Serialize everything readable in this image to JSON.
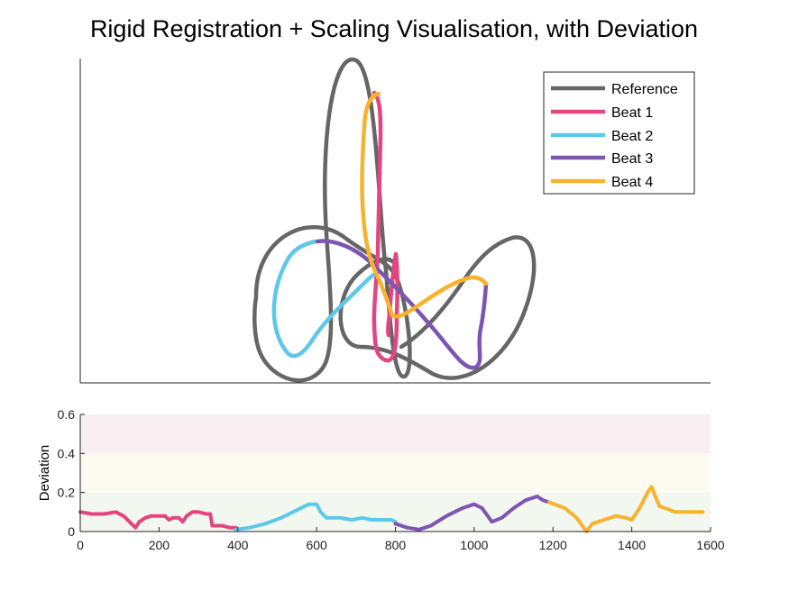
{
  "title": "Rigid Registration + Scaling Visualisation, with Deviation",
  "colors": {
    "reference": "#666666",
    "beat1": "#e5457f",
    "beat2": "#5ec8e8",
    "beat3": "#7e55b3",
    "beat4": "#f8b22e",
    "zone_high": "#f9eef2",
    "zone_mid": "#fdfbf0",
    "zone_low": "#f2f8f0"
  },
  "legend": [
    "Reference",
    "Beat 1",
    "Beat 2",
    "Beat 3",
    "Beat 4"
  ],
  "chart_data": [
    {
      "type": "line",
      "title": "Rigid Registration + Scaling Visualisation, with Deviation",
      "axes_ticks": "none",
      "legend_position": "top-right",
      "series": [
        {
          "name": "Reference"
        },
        {
          "name": "Beat 1"
        },
        {
          "name": "Beat 2"
        },
        {
          "name": "Beat 3"
        },
        {
          "name": "Beat 4"
        }
      ]
    },
    {
      "type": "line",
      "xlabel": "",
      "ylabel": "Deviation",
      "xlim": [
        0,
        1600
      ],
      "ylim": [
        0,
        0.6
      ],
      "xticks": [
        "0",
        "200",
        "400",
        "600",
        "800",
        "1000",
        "1200",
        "1400",
        "1600"
      ],
      "yticks": [
        "0",
        "0.2",
        "0.4",
        "0.6"
      ],
      "bands": [
        {
          "from": 0,
          "to": 0.2,
          "zone": "low"
        },
        {
          "from": 0.2,
          "to": 0.4,
          "zone": "mid"
        },
        {
          "from": 0.4,
          "to": 0.6,
          "zone": "high"
        }
      ],
      "series": [
        {
          "name": "Beat 1",
          "x": [
            0,
            30,
            60,
            90,
            110,
            125,
            140,
            150,
            165,
            180,
            200,
            215,
            225,
            235,
            250,
            260,
            270,
            285,
            300,
            320,
            330,
            335,
            360,
            380,
            395
          ],
          "y": [
            0.1,
            0.09,
            0.09,
            0.1,
            0.08,
            0.05,
            0.02,
            0.05,
            0.07,
            0.08,
            0.08,
            0.08,
            0.06,
            0.07,
            0.07,
            0.05,
            0.08,
            0.1,
            0.1,
            0.09,
            0.09,
            0.03,
            0.03,
            0.02,
            0.02
          ]
        },
        {
          "name": "Beat 2",
          "x": [
            395,
            430,
            470,
            510,
            550,
            580,
            600,
            610,
            625,
            660,
            690,
            715,
            740,
            770,
            790,
            800
          ],
          "y": [
            0.01,
            0.02,
            0.04,
            0.07,
            0.11,
            0.14,
            0.14,
            0.1,
            0.07,
            0.07,
            0.06,
            0.07,
            0.06,
            0.06,
            0.06,
            0.05
          ]
        },
        {
          "name": "Beat 3",
          "x": [
            800,
            830,
            860,
            890,
            930,
            970,
            1000,
            1020,
            1045,
            1070,
            1100,
            1130,
            1160,
            1175,
            1190
          ],
          "y": [
            0.04,
            0.02,
            0.01,
            0.03,
            0.08,
            0.12,
            0.14,
            0.12,
            0.05,
            0.07,
            0.12,
            0.16,
            0.18,
            0.16,
            0.15
          ]
        },
        {
          "name": "Beat 4",
          "x": [
            1190,
            1230,
            1260,
            1285,
            1300,
            1330,
            1360,
            1385,
            1400,
            1420,
            1440,
            1450,
            1470,
            1510,
            1550,
            1580
          ],
          "y": [
            0.15,
            0.12,
            0.07,
            0.0,
            0.04,
            0.06,
            0.08,
            0.07,
            0.06,
            0.12,
            0.2,
            0.23,
            0.13,
            0.1,
            0.1,
            0.1
          ]
        }
      ]
    }
  ]
}
